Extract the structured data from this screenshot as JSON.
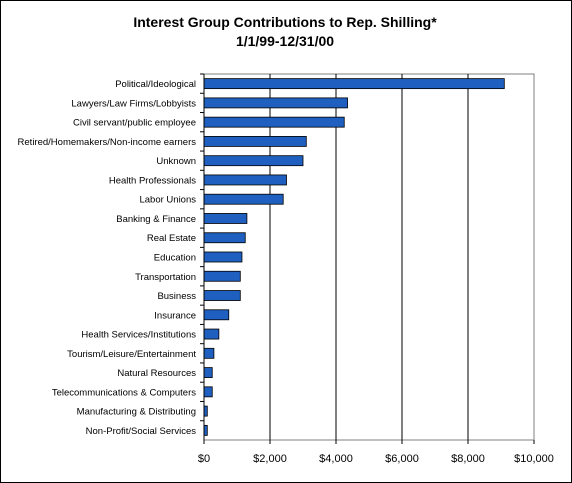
{
  "chart_data": {
    "type": "bar",
    "orientation": "horizontal",
    "title": "Interest Group Contributions to Rep. Shilling*",
    "subtitle": "1/1/99-12/31/00",
    "xlabel": "",
    "ylabel": "",
    "xlim": [
      0,
      10000
    ],
    "xticks": [
      "$0",
      "$2,000",
      "$4,000",
      "$6,000",
      "$8,000",
      "$10,000"
    ],
    "grid": "vertical",
    "legend": "none",
    "bar_color": "#1f5fbf",
    "categories": [
      "Political/Ideological",
      "Lawyers/Law Firms/Lobbyists",
      "Civil servant/public employee",
      "Retired/Homemakers/Non-income earners",
      "Unknown",
      "Health Professionals",
      "Labor Unions",
      "Banking & Finance",
      "Real Estate",
      "Education",
      "Transportation",
      "Business",
      "Insurance",
      "Health Services/Institutions",
      "Tourism/Leisure/Entertainment",
      "Natural Resources",
      "Telecommunications & Computers",
      "Manufacturing & Distributing",
      "Non-Profit/Social Services"
    ],
    "values": [
      9100,
      4350,
      4250,
      3100,
      3000,
      2500,
      2400,
      1300,
      1250,
      1150,
      1100,
      1100,
      750,
      450,
      300,
      250,
      250,
      100,
      100
    ]
  }
}
